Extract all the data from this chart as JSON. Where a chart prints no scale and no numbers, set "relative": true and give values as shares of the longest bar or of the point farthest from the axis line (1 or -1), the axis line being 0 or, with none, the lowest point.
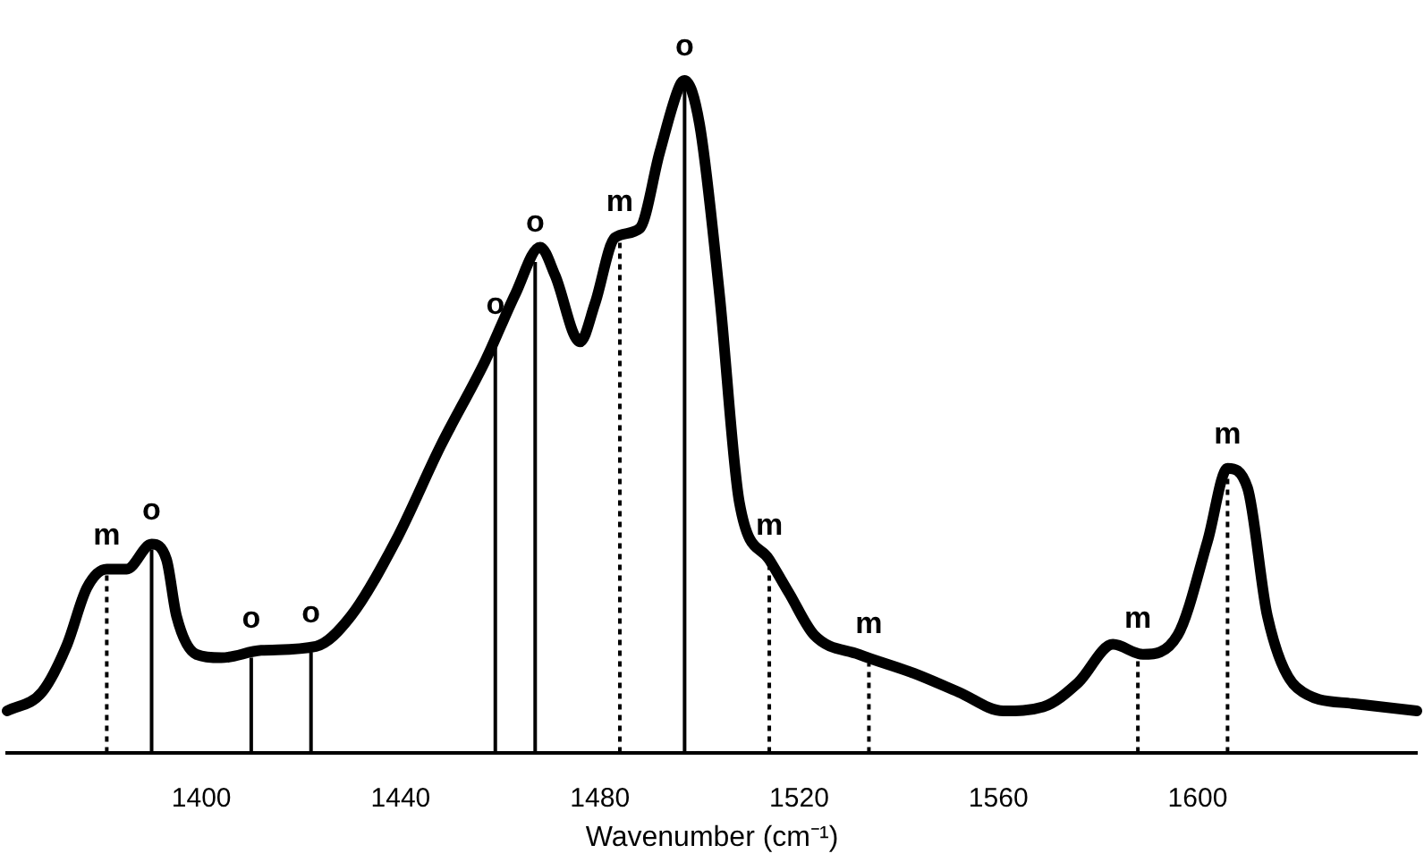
{
  "chart_data": {
    "type": "line",
    "relative": true,
    "xlabel": "Wavenumber (cm⁻¹)",
    "color": "#000000",
    "marker": "none",
    "line_style": "solid",
    "grid": false,
    "legend": false,
    "x": [
      1361,
      1368,
      1373,
      1377,
      1381,
      1385,
      1390,
      1393,
      1395,
      1399,
      1404,
      1412,
      1423,
      1430,
      1439,
      1448,
      1457,
      1463,
      1468,
      1471,
      1476,
      1479,
      1483,
      1488,
      1492,
      1496,
      1497,
      1500,
      1504,
      1508,
      1514,
      1518,
      1523,
      1532,
      1543,
      1552,
      1561,
      1569,
      1576,
      1583,
      1589,
      1596,
      1602,
      1606,
      1610,
      1614,
      1620,
      1631,
      1644
    ],
    "values": [
      0.062,
      0.09,
      0.16,
      0.245,
      0.273,
      0.273,
      0.31,
      0.287,
      0.203,
      0.146,
      0.141,
      0.152,
      0.158,
      0.203,
      0.315,
      0.456,
      0.583,
      0.682,
      0.752,
      0.71,
      0.611,
      0.668,
      0.766,
      0.78,
      0.893,
      0.992,
      1,
      0.935,
      0.682,
      0.372,
      0.287,
      0.237,
      0.175,
      0.146,
      0.118,
      0.09,
      0.062,
      0.068,
      0.104,
      0.161,
      0.146,
      0.175,
      0.315,
      0.423,
      0.394,
      0.203,
      0.096,
      0.073,
      0.062
    ],
    "xlim": [
      1361,
      1644
    ],
    "xticks": [
      1400,
      1440,
      1480,
      1520,
      1560,
      1600
    ],
    "ref_lines": [
      {
        "axis": "x",
        "value": 1381,
        "label": "m",
        "line_style": "dotted"
      },
      {
        "axis": "x",
        "value": 1390,
        "label": "o",
        "line_style": "solid"
      },
      {
        "axis": "x",
        "value": 1410,
        "label": "o",
        "line_style": "solid"
      },
      {
        "axis": "x",
        "value": 1422,
        "label": "o",
        "line_style": "solid"
      },
      {
        "axis": "x",
        "value": 1459,
        "label": "o",
        "line_style": "solid"
      },
      {
        "axis": "x",
        "value": 1467,
        "label": "o",
        "line_style": "solid"
      },
      {
        "axis": "x",
        "value": 1484,
        "label": "m",
        "line_style": "dotted"
      },
      {
        "axis": "x",
        "value": 1497,
        "label": "o",
        "line_style": "solid"
      },
      {
        "axis": "x",
        "value": 1514,
        "label": "m",
        "line_style": "dotted"
      },
      {
        "axis": "x",
        "value": 1534,
        "label": "m",
        "line_style": "dotted"
      },
      {
        "axis": "x",
        "value": 1588,
        "label": "m",
        "line_style": "dotted"
      },
      {
        "axis": "x",
        "value": 1606,
        "label": "m",
        "line_style": "dotted"
      }
    ]
  }
}
